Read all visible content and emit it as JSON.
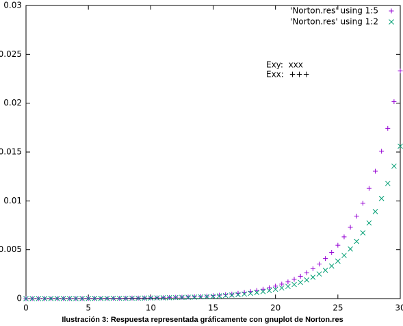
{
  "chart_data": {
    "type": "scatter",
    "caption": "Ilustración 3: Respuesta representada gráficamente con gnuplot de Norton.res",
    "annotations": [
      "Exy:  xxx",
      "Exx:  +++"
    ],
    "x": [
      0,
      0.5,
      1,
      1.5,
      2,
      2.5,
      3,
      3.5,
      4,
      4.5,
      5,
      5.5,
      6,
      6.5,
      7,
      7.5,
      8,
      8.5,
      9,
      9.5,
      10,
      10.5,
      11,
      11.5,
      12,
      12.5,
      13,
      13.5,
      14,
      14.5,
      15,
      15.5,
      16,
      16.5,
      17,
      17.5,
      18,
      18.5,
      19,
      19.5,
      20,
      20.5,
      21,
      21.5,
      22,
      22.5,
      23,
      23.5,
      24,
      24.5,
      25,
      25.5,
      26,
      26.5,
      27,
      27.5,
      28,
      28.5,
      29,
      29.5,
      30
    ],
    "series": [
      {
        "name": "'Norton.res' using 1:5",
        "color": "#9400d3",
        "marker": "plus",
        "values": [
          0,
          0,
          0,
          0,
          1e-05,
          1e-05,
          1e-05,
          1e-05,
          1e-05,
          1e-05,
          2e-05,
          2e-05,
          2e-05,
          3e-05,
          3e-05,
          3e-05,
          4e-05,
          5e-05,
          5e-05,
          6e-05,
          7e-05,
          8e-05,
          9e-05,
          0.00011,
          0.00013,
          0.00014,
          0.00017,
          0.00019,
          0.00022,
          0.00026,
          0.0003,
          0.00035,
          0.0004,
          0.00046,
          0.00054,
          0.00062,
          0.00072,
          0.00083,
          0.00096,
          0.00111,
          0.00128,
          0.00148,
          0.00171,
          0.00198,
          0.00229,
          0.00265,
          0.00306,
          0.00354,
          0.00409,
          0.00473,
          0.00546,
          0.00632,
          0.0073,
          0.00844,
          0.00976,
          0.01128,
          0.01304,
          0.01508,
          0.01743,
          0.02015,
          0.0233
        ]
      },
      {
        "name": "'Norton.res' using 1:2",
        "color": "#009e73",
        "marker": "cross",
        "values": [
          0,
          0,
          0,
          0,
          1e-05,
          1e-05,
          1e-05,
          1e-05,
          1e-05,
          1e-05,
          1e-05,
          2e-05,
          2e-05,
          2e-05,
          3e-05,
          3e-05,
          3e-05,
          4e-05,
          4e-05,
          5e-05,
          6e-05,
          7e-05,
          8e-05,
          9e-05,
          0.0001,
          0.00012,
          0.00013,
          0.00015,
          0.00018,
          0.0002,
          0.00023,
          0.00027,
          0.00031,
          0.00036,
          0.00041,
          0.00047,
          0.00054,
          0.00062,
          0.00072,
          0.00082,
          0.00095,
          0.00109,
          0.00125,
          0.00144,
          0.00166,
          0.00191,
          0.00219,
          0.00252,
          0.0029,
          0.00334,
          0.00384,
          0.00442,
          0.00508,
          0.00585,
          0.00673,
          0.00774,
          0.00891,
          0.01025,
          0.01179,
          0.01356,
          0.0156
        ]
      }
    ],
    "xlim": [
      0,
      30
    ],
    "xticks": [
      0,
      5,
      10,
      15,
      20,
      25,
      30
    ],
    "ylim": [
      0,
      0.03
    ],
    "yticks": [
      0,
      0.005,
      0.01,
      0.015,
      0.02,
      0.025,
      0.03
    ],
    "grid": false,
    "legend": "top-right"
  }
}
